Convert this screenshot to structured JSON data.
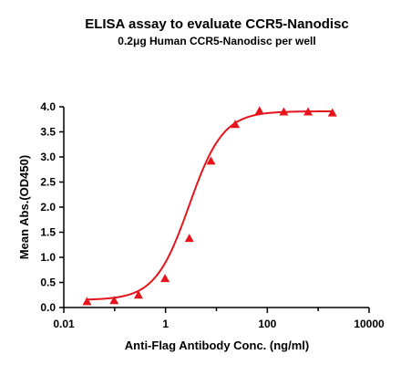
{
  "chart_data": {
    "type": "scatter",
    "title": "ELISA assay to evaluate CCR5-Nanodisc",
    "subtitle": "0.2μg Human CCR5-Nanodisc per well",
    "xlabel": "Anti-Flag Antibody Conc. (ng/ml)",
    "ylabel": "Mean Abs.(OD450)",
    "x_scale": "log",
    "xlim": [
      0.01,
      10000
    ],
    "ylim": [
      0,
      4.0
    ],
    "x_ticks": [
      "0.01",
      "1",
      "100",
      "10000"
    ],
    "y_ticks": [
      "0.0",
      "0.5",
      "1.0",
      "1.5",
      "2.0",
      "2.5",
      "3.0",
      "3.5",
      "4.0"
    ],
    "grid": false,
    "marker": "triangle",
    "color": "#e8141c",
    "fit": "four-parameter logistic curve",
    "series": [
      {
        "x": [
          0.0286,
          0.0977,
          0.293,
          0.977,
          2.93,
          7.81,
          23.4,
          70.3,
          211,
          633,
          1900
        ],
        "y": [
          0.12,
          0.14,
          0.25,
          0.58,
          1.38,
          2.92,
          3.65,
          3.92,
          3.9,
          3.9,
          3.88
        ]
      }
    ]
  }
}
